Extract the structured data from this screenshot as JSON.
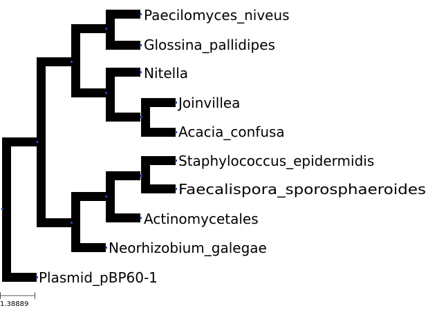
{
  "tree": {
    "branch_color": "#000000",
    "node_marker_color": "#1f3fbf",
    "leaves": [
      "Paecilomyces_niveus",
      "Glossina_pallidipes",
      "Nitella",
      "Joinvillea",
      "Acacia_confusa",
      "Staphylococcus_epidermidis",
      "Faecalispora_sporosphaeroides",
      "Actinomycetales",
      "Neorhizobium_galegae",
      "Plasmid_pBP60-1"
    ],
    "scale_bar": {
      "label": "1.38889"
    }
  }
}
